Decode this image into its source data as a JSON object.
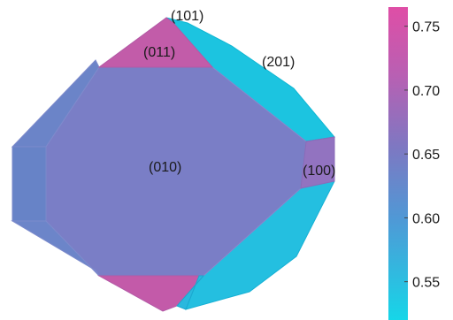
{
  "facets": {
    "f010": "(010)",
    "f011": "(011)",
    "f101": "(101)",
    "f201": "(201)",
    "f100": "(100)"
  },
  "colorbar": {
    "range": [
      0.52,
      0.765
    ],
    "ticks": [
      "0.75",
      "0.70",
      "0.65",
      "0.60",
      "0.55"
    ],
    "tick_values": [
      0.75,
      0.7,
      0.65,
      0.6,
      0.55
    ],
    "colors": {
      "top": "#d94fa7",
      "mid_high": "#a866b8",
      "mid": "#6a7ec3",
      "mid_low": "#3fa9dc",
      "bottom": "#18d3e6"
    }
  },
  "colors": {
    "pink": "#c75aab",
    "violet": "#7b7ec4",
    "blue_facet": "#6587c9",
    "cyan": "#1dc3df",
    "purple_small": "#9373bf"
  }
}
